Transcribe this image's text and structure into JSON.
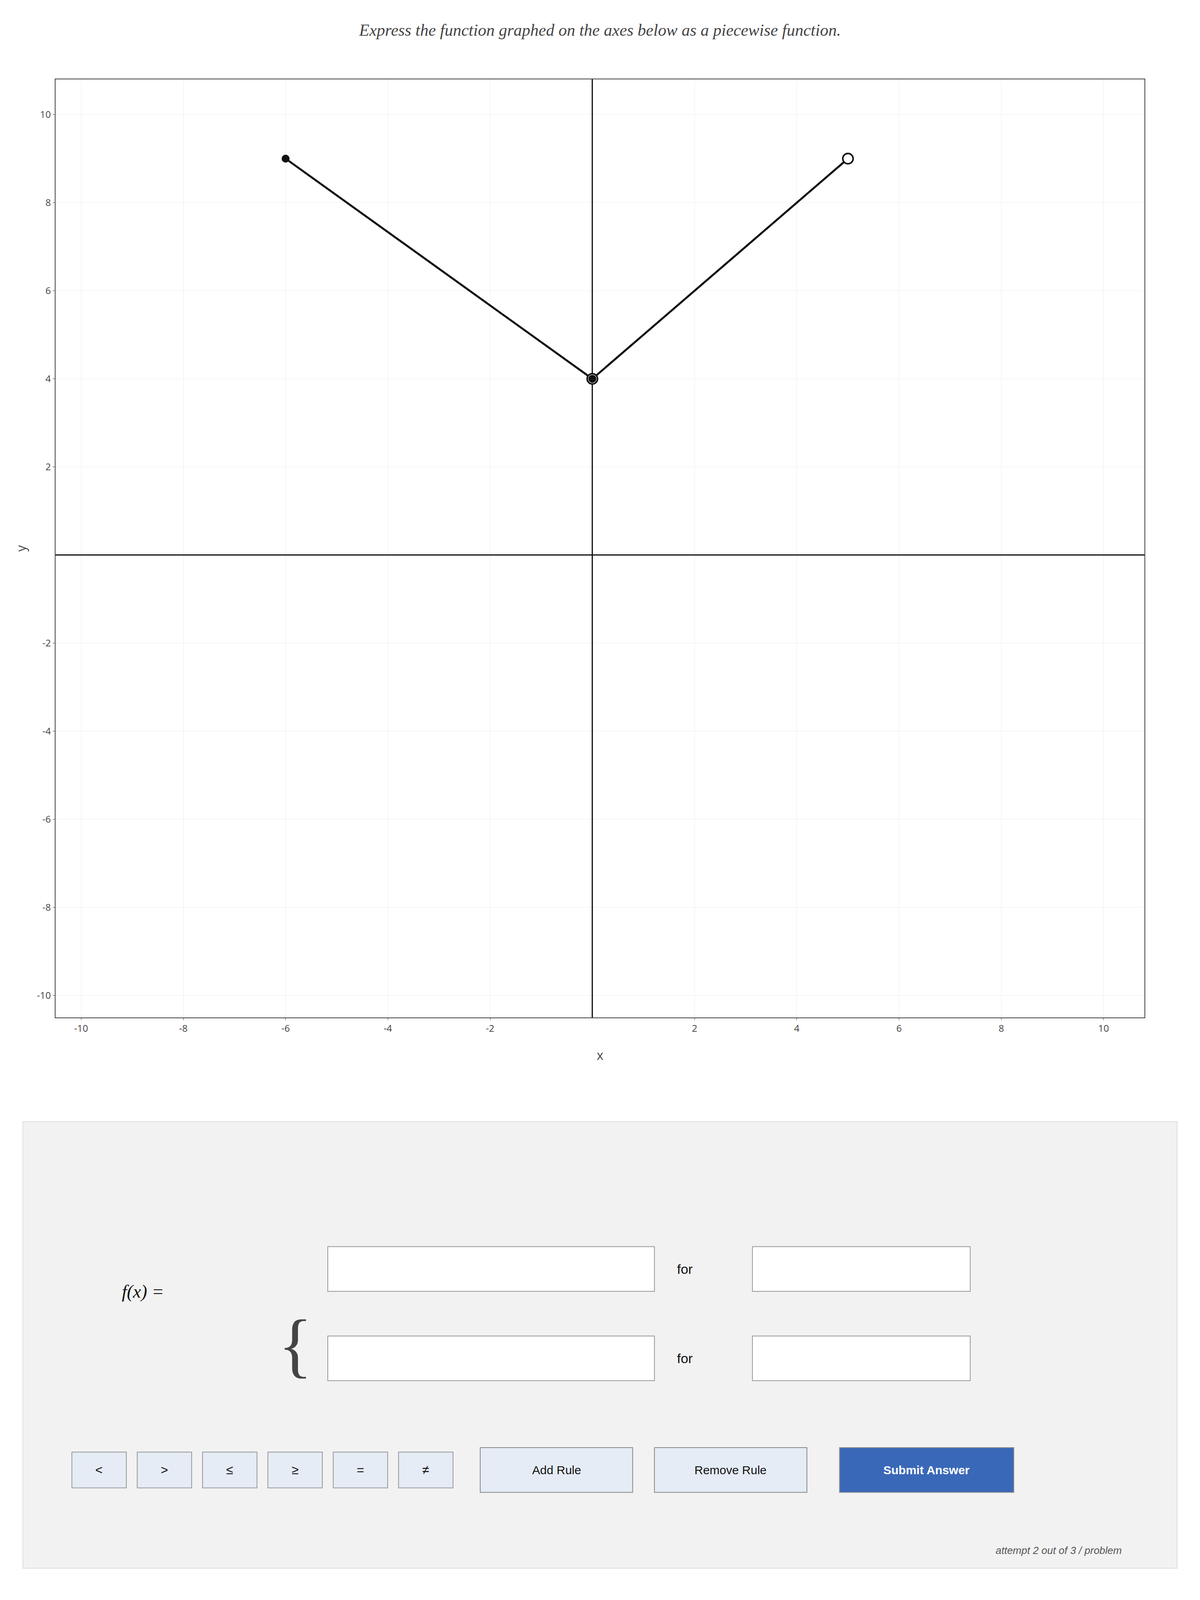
{
  "chart_data": {
    "type": "line",
    "title": "Express the function graphed on the axes below as a piecewise function.",
    "xlabel": "x",
    "ylabel": "y",
    "xlim": [
      -10.5,
      10.8
    ],
    "ylim": [
      -10.5,
      10.8
    ],
    "xticks": [
      -10,
      -8,
      -6,
      -4,
      -2,
      2,
      4,
      6,
      8,
      10
    ],
    "yticks": [
      -10,
      -8,
      -6,
      -4,
      -2,
      2,
      4,
      6,
      8,
      10
    ],
    "grid": true,
    "series": [
      {
        "type": "line",
        "color": "#111111",
        "x": [
          -6,
          0
        ],
        "values": [
          9,
          4
        ]
      },
      {
        "type": "line",
        "color": "#111111",
        "x": [
          0,
          5
        ],
        "values": [
          4,
          9
        ]
      },
      {
        "type": "scatter",
        "marker": "open",
        "color": "#111111",
        "x": [
          0,
          5
        ],
        "values": [
          4,
          9
        ]
      },
      {
        "type": "scatter",
        "marker": "filled",
        "color": "#111111",
        "x": [
          -6,
          0
        ],
        "values": [
          9,
          4
        ]
      }
    ],
    "annotations": [
      "f(x) =",
      "{",
      "for",
      "for",
      "<",
      ">",
      "≤",
      "≥",
      "=",
      "≠",
      "Add Rule",
      "Remove Rule",
      "Submit Answer",
      "attempt 2 out of 3 / problem"
    ]
  }
}
